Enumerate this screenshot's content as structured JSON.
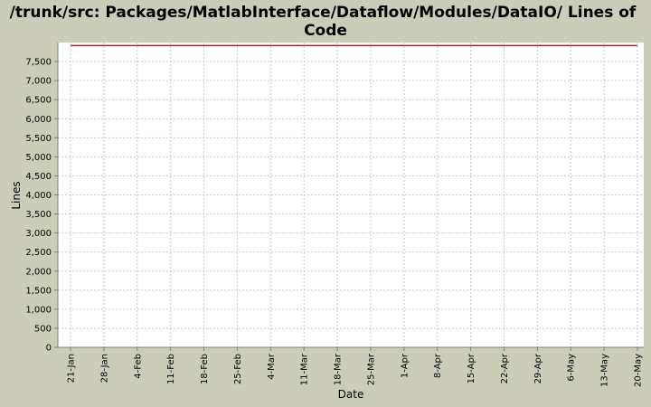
{
  "chart_data": {
    "type": "line",
    "title_lines": [
      "/trunk/src: Packages/MatlabInterface/Dataflow/Modules/DataIO/ Lines of",
      "Code"
    ],
    "xlabel": "Date",
    "ylabel": "Lines",
    "ylim": [
      0,
      8000
    ],
    "yticks": [
      "0",
      "500",
      "1,000",
      "1,500",
      "2,000",
      "2,500",
      "3,000",
      "3,500",
      "4,000",
      "4,500",
      "5,000",
      "5,500",
      "6,000",
      "6,500",
      "7,000",
      "7,500"
    ],
    "ytick_values": [
      0,
      500,
      1000,
      1500,
      2000,
      2500,
      3000,
      3500,
      4000,
      4500,
      5000,
      5500,
      6000,
      6500,
      7000,
      7500
    ],
    "xticks": [
      "21-Jan",
      "28-Jan",
      "4-Feb",
      "11-Feb",
      "18-Feb",
      "25-Feb",
      "4-Mar",
      "11-Mar",
      "18-Mar",
      "25-Mar",
      "1-Apr",
      "8-Apr",
      "15-Apr",
      "22-Apr",
      "29-Apr",
      "6-May",
      "13-May",
      "20-May"
    ],
    "grid": true,
    "series": [
      {
        "color": "#b22222",
        "x": [
          "21-Jan",
          "20-May"
        ],
        "values": [
          7920,
          7920
        ]
      }
    ]
  }
}
